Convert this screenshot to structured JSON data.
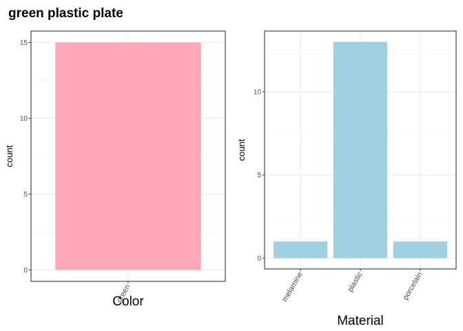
{
  "title": "green plastic plate",
  "chart_data": [
    {
      "type": "bar",
      "title": "",
      "xlabel": "Color",
      "ylabel": "count",
      "categories": [
        "green"
      ],
      "values": [
        15
      ],
      "ylim": [
        -0.75,
        15.75
      ],
      "yticks": [
        0,
        5,
        10,
        15
      ],
      "bar_color": "#ffa8b8",
      "grid": true,
      "legend": "none"
    },
    {
      "type": "bar",
      "title": "",
      "xlabel": "Material",
      "ylabel": "count",
      "categories": [
        "melamine",
        "plastic",
        "porcelain"
      ],
      "values": [
        1,
        13,
        1
      ],
      "ylim": [
        -0.65,
        13.65
      ],
      "yticks": [
        0,
        5,
        10
      ],
      "bar_color": "#a0d1e2",
      "grid": true,
      "legend": "none"
    }
  ]
}
